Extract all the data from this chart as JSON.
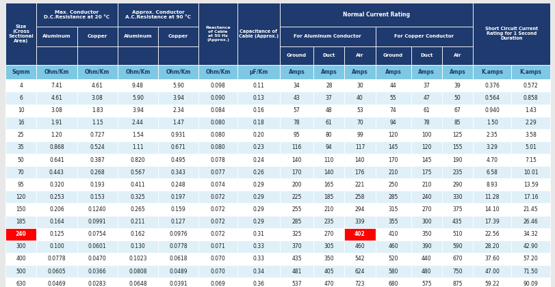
{
  "header_bg": "#1e3a6e",
  "header_text": "#ffffff",
  "unit_row_bg": "#7ec8e3",
  "unit_row_text": "#1e3a6e",
  "data_bg_even": "#ffffff",
  "data_bg_odd": "#dff0f8",
  "border_color": "#ffffff",
  "special_row_size": "240",
  "special_size_bg": "#ff0000",
  "special_size_text": "#ffffff",
  "special_cell_col": 9,
  "special_cell_value": "402",
  "special_cell_bg": "#ff0000",
  "special_cell_text": "#ffffff",
  "unit_row": [
    "Sqmm",
    "Ohm/Km",
    "Ohm/Km",
    "Ohm/Km",
    "Ohm/Km",
    "Ohm/Km",
    "μF/Km",
    "Amps",
    "Amps",
    "Amps",
    "Amps",
    "Amps",
    "Amps",
    "K.amps",
    "K.amps"
  ],
  "col_widths_raw": [
    3.2,
    4.2,
    4.2,
    4.2,
    4.2,
    4.0,
    4.4,
    3.5,
    3.2,
    3.2,
    3.7,
    3.2,
    3.2,
    4.0,
    4.0
  ],
  "data": [
    [
      "4",
      "7.41",
      "4.61",
      "9.48",
      "5.90",
      "0.098",
      "0.11",
      "34",
      "28",
      "30",
      "44",
      "37",
      "39",
      "0.376",
      "0.572"
    ],
    [
      "6",
      "4.61",
      "3.08",
      "5.90",
      "3.94",
      "0.090",
      "0.13",
      "43",
      "37",
      "40",
      "55",
      "47",
      "50",
      "0.564",
      "0.858"
    ],
    [
      "10",
      "3.08",
      "1.83",
      "3.94",
      "2.34",
      "0.084",
      "0.16",
      "57",
      "48",
      "53",
      "74",
      "61",
      "67",
      "0.940",
      "1.43"
    ],
    [
      "16",
      "1.91",
      "1.15",
      "2.44",
      "1.47",
      "0.080",
      "0.18",
      "78",
      "61",
      "70",
      "94",
      "78",
      "85",
      "1.50",
      "2.29"
    ],
    [
      "25",
      "1.20",
      "0.727",
      "1.54",
      "0.931",
      "0.080",
      "0.20",
      "95",
      "80",
      "99",
      "120",
      "100",
      "125",
      "2.35",
      "3.58"
    ],
    [
      "35",
      "0.868",
      "0.524",
      "1.11",
      "0.671",
      "0.080",
      "0.23",
      "116",
      "94",
      "117",
      "145",
      "120",
      "155",
      "3.29",
      "5.01"
    ],
    [
      "50",
      "0.641",
      "0.387",
      "0.820",
      "0.495",
      "0.078",
      "0.24",
      "140",
      "110",
      "140",
      "170",
      "145",
      "190",
      "4.70",
      "7.15"
    ],
    [
      "70",
      "0.443",
      "0.268",
      "0.567",
      "0.343",
      "0.077",
      "0.26",
      "170",
      "140",
      "176",
      "210",
      "175",
      "235",
      "6.58",
      "10.01"
    ],
    [
      "95",
      "0.320",
      "0.193",
      "0.411",
      "0.248",
      "0.074",
      "0.29",
      "200",
      "165",
      "221",
      "250",
      "210",
      "290",
      "8.93",
      "13.59"
    ],
    [
      "120",
      "0.253",
      "0.153",
      "0.325",
      "0.197",
      "0.072",
      "0.29",
      "225",
      "185",
      "258",
      "285",
      "240",
      "330",
      "11.28",
      "17.16"
    ],
    [
      "150",
      "0.206",
      "0.1240",
      "0.265",
      "0.159",
      "0.072",
      "0.29",
      "255",
      "210",
      "294",
      "315",
      "270",
      "375",
      "14.10",
      "21.45"
    ],
    [
      "185",
      "0.164",
      "0.0991",
      "0.211",
      "0.127",
      "0.072",
      "0.29",
      "285",
      "235",
      "339",
      "355",
      "300",
      "435",
      "17.39",
      "26.46"
    ],
    [
      "240",
      "0.125",
      "0.0754",
      "0.162",
      "0.0976",
      "0.072",
      "0.31",
      "325",
      "270",
      "402",
      "410",
      "350",
      "510",
      "22.56",
      "34.32"
    ],
    [
      "300",
      "0.100",
      "0.0601",
      "0.130",
      "0.0778",
      "0.071",
      "0.33",
      "370",
      "305",
      "460",
      "460",
      "390",
      "590",
      "28.20",
      "42.90"
    ],
    [
      "400",
      "0.0778",
      "0.0470",
      "0.1023",
      "0.0618",
      "0.070",
      "0.33",
      "435",
      "350",
      "542",
      "520",
      "440",
      "670",
      "37.60",
      "57.20"
    ],
    [
      "500",
      "0.0605",
      "0.0366",
      "0.0808",
      "0.0489",
      "0.070",
      "0.34",
      "481",
      "405",
      "624",
      "580",
      "480",
      "750",
      "47.00",
      "71.50"
    ],
    [
      "630",
      "0.0469",
      "0.0283",
      "0.0648",
      "0.0391",
      "0.069",
      "0.36",
      "537",
      "470",
      "723",
      "680",
      "575",
      "875",
      "59.22",
      "90.09"
    ]
  ]
}
